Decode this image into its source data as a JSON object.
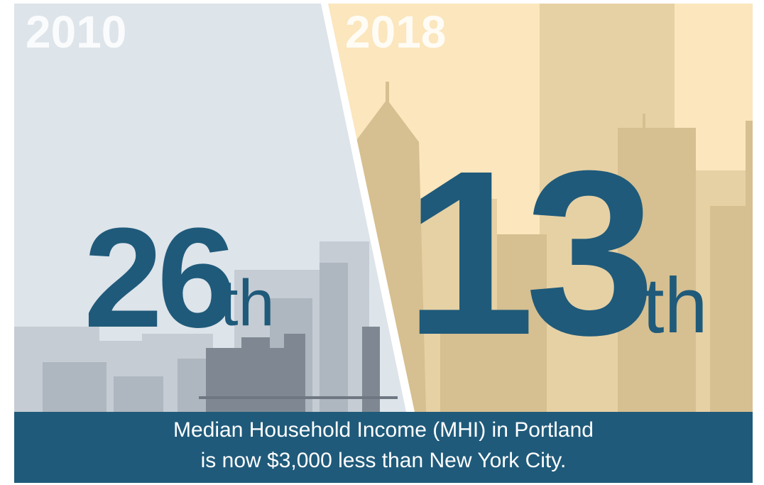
{
  "panels": [
    {
      "year": "2010",
      "rank": "26",
      "suffix": "th"
    },
    {
      "year": "2018",
      "rank": "13",
      "suffix": "th"
    }
  ],
  "footer": {
    "lines": [
      "Median Household Income (MHI) in Portland",
      "is now $3,000 less than New York City."
    ]
  }
}
